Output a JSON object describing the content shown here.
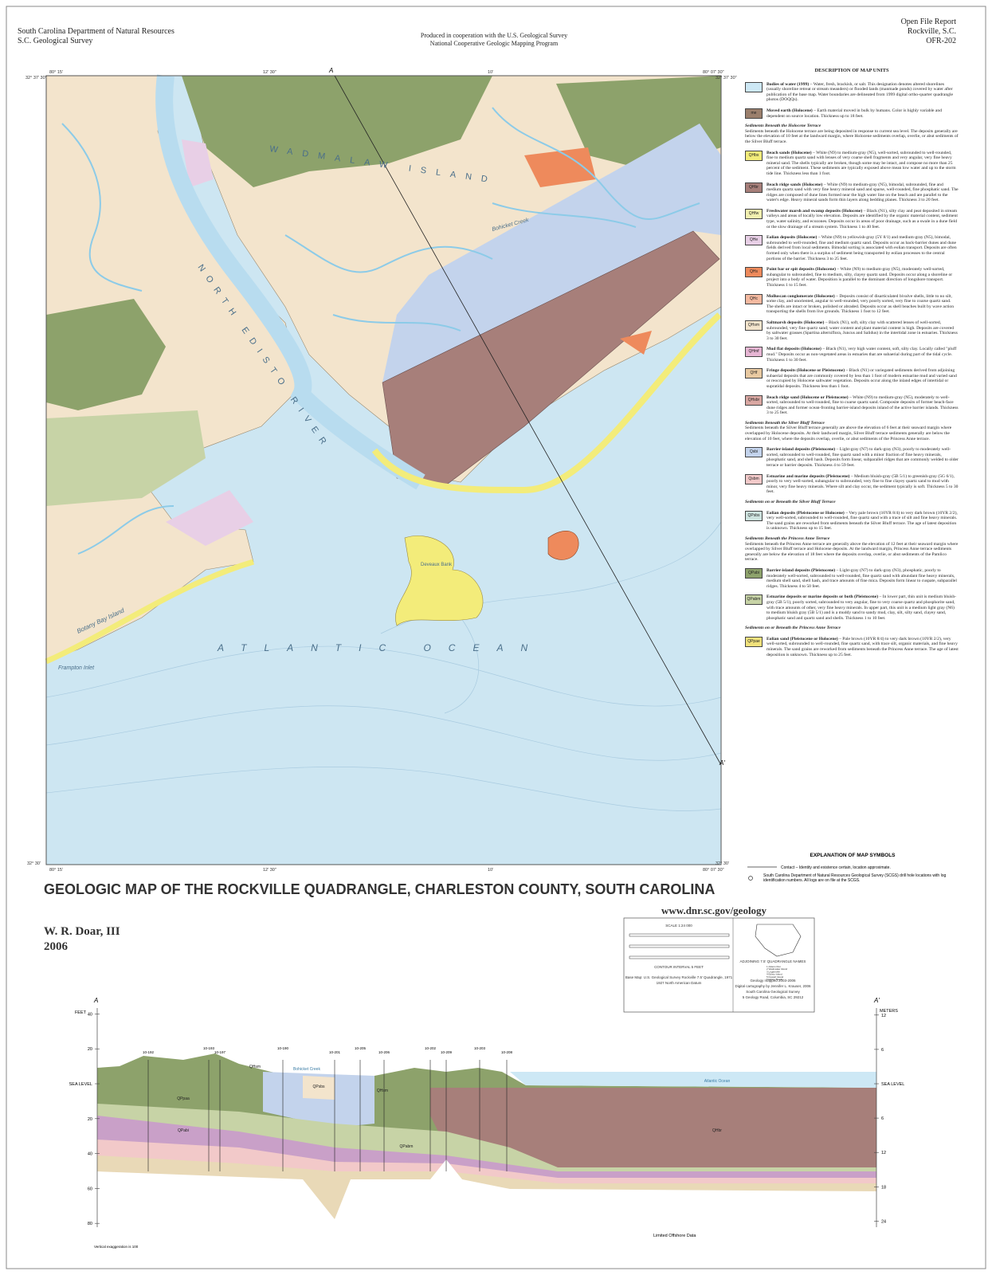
{
  "header": {
    "left": [
      "South Carolina Department of Natural Resources",
      "S.C. Geological Survey"
    ],
    "center": [
      "Produced in cooperation with the U.S. Geological Survey",
      "National Cooperative Geologic Mapping Program"
    ],
    "right": [
      "Open File Report",
      "Rockville, S.C.",
      "OFR-202"
    ]
  },
  "map": {
    "coords": [
      "80° 15'",
      "32° 37' 30\"",
      "12' 30\"",
      "10'",
      "80° 07' 30\"",
      "32° 37' 30\"",
      "80° 15'",
      "32° 30'",
      "12' 30\"",
      "10'",
      "80° 07' 30\"",
      "32° 30'"
    ],
    "places": [
      "NORTH EDISTO RIVER",
      "WADMALAW ISLAND",
      "ATLANTIC OCEAN",
      "Botany Bay Island",
      "Frampton Inlet",
      "Deveaux Bank",
      "Bohicket Creek"
    ],
    "section_ends": [
      "A",
      "A'"
    ]
  },
  "legend": {
    "title": "DESCRIPTION OF MAP UNITS",
    "groups": [
      {
        "units": [
          {
            "color": "#cde8f5",
            "name": "Bodies of water (1999)",
            "description": "– Water, fresh, brackish, or salt. This designation denotes altered shorelines (usually shoreline retreat or stream meanders) or flooded lands (manmade ponds) covered by water after publication of the base map. Water boundaries are delineated from 1999 digital ortho-quarter quadrangle photos (DOQQs)."
          },
          {
            "code": "me",
            "color": "#9b7f6c",
            "name": "Moved earth (Holocene)",
            "description": "– Earth material moved in bulk by humans. Color is highly variable and dependent on source location. Thickness up to 18 feet."
          }
        ]
      },
      {
        "heading": "Sediments Beneath the Holocene Terrace",
        "intro": "Sediments beneath the Holocene terrace are being deposited in response to current sea level. The deposits generally are below the elevation of 10 feet at the landward margin, where Holocene sediments overlap, overlie, or abut sediments of the Silver Bluff terrace.",
        "units": [
          {
            "code": "QHbs",
            "color": "#f3ec7a",
            "name": "Beach sands (Holocene)",
            "description": "– White (N9) to medium-gray (N5), well-sorted, subrounded to well-rounded, fine to medium quartz sand with lenses of very coarse shell fragments and very angular, very fine heavy mineral sand. The shells typically are broken, though some may be intact, and compose no more than 25 percent of the sediment. These sediments are typically exposed above mean low water and up to the storm tide line. Thickness less than 1 foot."
          },
          {
            "code": "QHbr",
            "color": "#a77f7a",
            "name": "Beach ridge sands (Holocene)",
            "description": "– White (N9) to medium-gray (N5), bimodal, subrounded, fine and medium quartz sand with very fine heavy mineral sand and sparse, well-rounded, fine phosphatic sand. The ridges are composed of dune lines formed near the high water line on the beach and are parallel to the water's edge. Heavy mineral sands form thin layers along bedding planes. Thickness 3 to 20 feet."
          },
          {
            "code": "QHfw",
            "color": "#f2f0b0",
            "name": "Freshwater marsh and swamp deposits (Holocene)",
            "description": "– Black (N1), silty clay and peat deposited in stream valleys and areas of locally low elevation. Deposits are identified by the organic material content, sediment type, water salinity, and ecozones. Deposits occur in areas of poor drainage, such as a swale in a dune field or the slow drainage of a stream system. Thickness 1 to 40 feet."
          },
          {
            "code": "QHe",
            "color": "#e8cfe6",
            "name": "Eolian deposits (Holocene)",
            "description": "– White (N9) to yellowish-gray (5Y 8/1) and medium-gray (N5), bimodal, subrounded to well-rounded, fine and medium quartz sand. Deposits occur as back-barrier dunes and dune fields derived from local sediments. Bimodal sorting is associated with eolian transport. Deposits are often formed only when there is a surplus of sediment being transported by eolian processes to the central portions of the barrier. Thickness 3 to 25 feet."
          },
          {
            "code": "QHs",
            "color": "#ee8a5c",
            "name": "Point bar or spit deposits (Holocene)",
            "description": "– White (N9) to medium-gray (N5), moderately well-sorted, subangular to subrounded, fine to medium, silty, clayey quartz sand. Deposits occur along a shoreline or project into a body of water. Deposition is parallel to the dominant direction of longshore transport. Thickness 1 to 15 feet."
          },
          {
            "code": "QHc",
            "color": "#f4b9a0",
            "name": "Molluscan conglomerate (Holocene)",
            "description": "– Deposits consist of disarticulated bivalve shells, little to no silt, some clay, and unoriented, angular to well-rounded, very poorly sorted, very fine to coarse quartz sand. The shells are intact or broken, polished or abraded. Deposits occur as shell beaches built by wave action transporting the shells from live grounds. Thickness 1 foot to 12 feet."
          },
          {
            "code": "QHsm",
            "color": "#f3e4cc",
            "name": "Saltmarsh deposits (Holocene)",
            "description": "– Black (N1), soft, silty clay with scattered lenses of well-sorted, subrounded, very fine quartz sand; water content and plant material content is high. Deposits are covered by saltwater grasses (Spartina alterniflora, Juncus and Salidus) in the intertidal zone in estuaries. Thickness 3 to 30 feet."
          },
          {
            "code": "QHmf",
            "color": "#e7b6d4",
            "name": "Mud flat deposits (Holocene)",
            "description": "– Black (N1), very high water content, soft, silty clay. Locally called \"pluff mud.\" Deposits occur as non-vegetated areas in estuaries that are subaerial during part of the tidal cycle. Thickness 1 to 30 feet."
          },
          {
            "code": "QHf",
            "color": "#e8c9a1",
            "name": "Fringe deposits (Holocene or Pleistocene)",
            "description": "– Black (N1) or variegated sediments derived from adjoining subaerial deposits that are commonly covered by less than 1 foot of modern estuarine mud and varied sand or reoccupied by Holocene saltwater vegetation. Deposits occur along the inland edges of intertidal or supratidal deposits. Thickness less than 1 foot."
          },
          {
            "code": "QHsbr",
            "color": "#d9a7a2",
            "name": "Beach ridge sand (Holocene or Pleistocene)",
            "description": "– White (N9) to medium-gray (N5), moderately to well-sorted, subrounded to well-rounded, fine to coarse quartz sand. Composite deposits of former beach-face dune ridges and former ocean-fronting barrier-island deposits inland of the active barrier islands. Thickness 3 to 25 feet."
          }
        ]
      },
      {
        "heading": "Sediments Beneath the Silver Bluff Terrace",
        "intro": "Sediments beneath the Silver Bluff terrace generally are above the elevation of 6 feet at their seaward margin where overlapped by Holocene deposits. At their landward margin, Silver Bluff terrace sediments generally are below the elevation of 10 feet, where the deposits overlap, overlie, or abut sediments of the Princess Anne terrace.",
        "units": [
          {
            "code": "Qsbi",
            "color": "#c3d3ec",
            "name": "Barrier-island deposits (Pleistocene)",
            "description": "– Light-gray (N7) to dark-gray (N3), poorly to moderately well-sorted, subrounded to well-rounded, fine quartz sand with a minor fraction of fine heavy minerals, phosphatic sand, and shell hash. Deposits form linear, subparallel ridges that are commonly welded to older terrace or barrier deposits. Thickness 4 to 59 feet."
          },
          {
            "code": "Qsbm",
            "color": "#f2c9c9",
            "name": "Estuarine and marine deposits (Pleistocene)",
            "description": "– Medium bluish-gray (5B 5/1) to greenish-gray (5G 6/1), poorly to very well-sorted, subangular to subrounded, very fine to fine clayey quartz sand to mud with minor, very fine heavy minerals. Where silt and clay occur, the sediment typically is soft. Thickness 5 to 30 feet."
          }
        ]
      },
      {
        "heading": "Sediments on or Beneath the Silver Bluff Terrace",
        "units": [
          {
            "code": "QPsbs",
            "color": "#cfe4e0",
            "name": "Eolian deposits (Pleistocene or Holocene)",
            "description": "– Very pale brown (10YR 8/4) to very dark brown (10YR 2/2), very well-sorted, subrounded to well-rounded, fine quartz sand with a trace of silt and fine heavy minerals. The sand grains are reworked from sediments beneath the Silver Bluff terrace. The age of latest deposition is unknown. Thickness up to 15 feet."
          }
        ]
      },
      {
        "heading": "Sediments Beneath the Princess Anne Terrace",
        "intro": "Sediments beneath the Princess Anne terrace are generally above the elevation of 12 feet at their seaward margin where overlapped by Silver Bluff terrace and Holocene deposits. At the landward margin, Princess Anne terrace sediments generally are below the elevation of 18 feet where the deposits overlap, overlie, or abut sediments of the Pamlico terrace.",
        "units": [
          {
            "code": "QPabi",
            "color": "#8da26b",
            "name": "Barrier-island deposits (Pleistocene)",
            "description": "– Light-gray (N7) to dark-gray (N3), phosphatic, poorly to moderately well-sorted, subrounded to well-rounded, fine quartz sand with abundant fine heavy minerals, medium shell sand, shell hash, and trace amounts of fine mica. Deposits form linear to cuspate, subparallel ridges. Thickness 4 to 50 feet."
          },
          {
            "code": "QPabm",
            "color": "#c7d3a6",
            "name": "Estuarine deposits or marine deposits or both (Pleistocene)",
            "description": "– In lower part, thin unit is medium bluish-gray (5B 5/1), poorly sorted, subrounded to very angular, fine to very coarse quartz and phosphorite sand, with trace amounts of other, very fine heavy minerals. In upper part, this unit is a medium light gray (N6) to medium bluish gray (5B 5/1) and is a muddy sand to sandy mud, clay, silt, silty sand, clayey sand, phosphatic sand and quartz sand and shells. Thickness 1 to 10 feet."
          }
        ]
      },
      {
        "heading": "Sediments on or Beneath the Princess Anne Terrace",
        "units": [
          {
            "code": "QPpae",
            "color": "#f1e27c",
            "name": "Eolian sand (Pleistocene or Holocene)",
            "description": "– Pale brown (10YR 8/4) to very dark brown (10YR 2/2), very well-sorted, subrounded to well-rounded, fine quartz sand, with trace silt, organic materials, and fine heavy minerals. The sand grains are reworked from sediments beneath the Princess Anne terrace. The age of latest deposition is unknown. Thickness up to 25 feet."
          }
        ]
      }
    ]
  },
  "symbols": {
    "title": "EXPLANATION OF MAP SYMBOLS",
    "items": [
      "Contact – Identity and existence certain, location approximate.",
      "South Carolina Department of Natural Resources Geological Survey (SCGS) drill hole locations with log identification numbers. All logs are on file at the SCGS."
    ]
  },
  "title": "GEOLOGIC MAP OF THE ROCKVILLE QUADRANGLE, CHARLESTON COUNTY, SOUTH CAROLINA",
  "author": "W. R. Doar, III",
  "year": "2006",
  "url": "www.dnr.sc.gov/geology",
  "scale_box": {
    "texts": [
      "SCALE 1:24 000",
      "CONTOUR INTERVAL 5 FEET",
      "Base Map: U.S. Geological Survey Rockville 7.5' Quadrangle, 1971",
      "1927 North American Datum",
      "ADJOINING 7.5' QUADRANGLE NAMES",
      "Geology mapped 2003-2006",
      "Digital cartography by Jennifer L. Krauser, 2006",
      "South Carolina Geological Survey",
      "5 Geology Road, Columbia, SC 29212"
    ],
    "quadrangles": [
      "1  Adams Run",
      "2  Wadmalaw Island",
      "3  Legareville",
      "4  Edisto Island",
      "5  Kiawah Island",
      "6  Edisto Beach"
    ]
  },
  "cross_section": {
    "start": "A",
    "end": "A'",
    "left_unit": "FEET",
    "right_unit": "METERS",
    "left_ticks": [
      40,
      20,
      {
        "value": 0,
        "label": "SEA LEVEL"
      },
      {
        "value": -20,
        "label": "20"
      },
      {
        "value": -40,
        "label": "40"
      },
      {
        "value": -60,
        "label": "60"
      },
      {
        "value": -80,
        "label": "80"
      }
    ],
    "right_ticks": [
      12,
      6,
      {
        "value": 0,
        "label": "SEA LEVEL"
      },
      {
        "value": -6,
        "label": "6"
      },
      {
        "value": -12,
        "label": "12"
      },
      {
        "value": -18,
        "label": "18"
      },
      {
        "value": -24,
        "label": "24"
      }
    ],
    "drill_holes": [
      "10-192",
      "10-193",
      "10-197",
      "10-190",
      "10-201",
      "10-205",
      "10-206",
      "10-202",
      "10-209",
      "10-203",
      "10-208"
    ],
    "labels": [
      "Bohicket Creek",
      "Atlantic Ocean",
      "QPpaa",
      "QPabi",
      "QHsm",
      "QPsbs",
      "QHbr",
      "QPabm",
      "QHsm"
    ],
    "notes": [
      "Limited Offshore Data",
      "Vertical exaggeration is 100"
    ]
  }
}
